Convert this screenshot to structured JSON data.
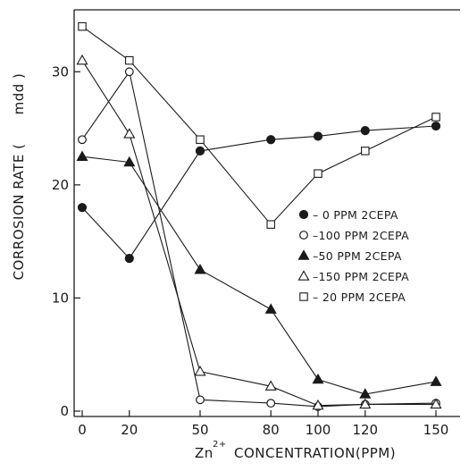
{
  "chart_data": {
    "type": "line",
    "title": "",
    "ylabel_main": "CORROSION RATE (",
    "ylabel_unit": "mdd )",
    "xlabel_prefix": "Zn",
    "xlabel_sup": "2+",
    "xlabel_rest": "CONCENTRATION(PPM)",
    "xlim": [
      0,
      155
    ],
    "ylim": [
      0,
      35
    ],
    "x_ticks": [
      0,
      20,
      50,
      80,
      100,
      120,
      150
    ],
    "y_ticks": [
      0,
      10,
      20,
      30
    ],
    "grid": false,
    "legend_position": "middle-right",
    "series": [
      {
        "name": "0 PPM 2CEPA",
        "legend_label": "– 0 PPM 2CEPA",
        "marker": "filled-circle",
        "x": [
          0,
          20,
          50,
          80,
          100,
          120,
          150
        ],
        "y": [
          18,
          13.5,
          23,
          24,
          24.3,
          24.8,
          25.2
        ]
      },
      {
        "name": "100 PPM 2CEPA",
        "legend_label": "–100 PPM 2CEPA",
        "marker": "open-circle",
        "x": [
          0,
          20,
          50,
          80,
          100,
          120,
          150
        ],
        "y": [
          24,
          30,
          1,
          0.7,
          0.4,
          0.6,
          0.7
        ]
      },
      {
        "name": "50 PPM 2CEPA",
        "legend_label": "–50 PPM 2CEPA",
        "marker": "filled-triangle",
        "x": [
          0,
          20,
          50,
          80,
          100,
          120,
          150
        ],
        "y": [
          22.5,
          22,
          12.5,
          9,
          2.8,
          1.5,
          2.6
        ]
      },
      {
        "name": "150 PPM 2CEPA",
        "legend_label": "–150 PPM 2CEPA",
        "marker": "open-triangle",
        "x": [
          0,
          20,
          50,
          80,
          100,
          120,
          150
        ],
        "y": [
          31,
          24.5,
          3.5,
          2.2,
          0.5,
          0.6,
          0.6
        ]
      },
      {
        "name": "20 PPM 2CEPA",
        "legend_label": "– 20 PPM 2CEPA",
        "marker": "open-square",
        "x": [
          0,
          20,
          50,
          80,
          100,
          120,
          150
        ],
        "y": [
          34,
          31,
          24,
          16.5,
          21,
          23,
          26
        ]
      }
    ]
  }
}
